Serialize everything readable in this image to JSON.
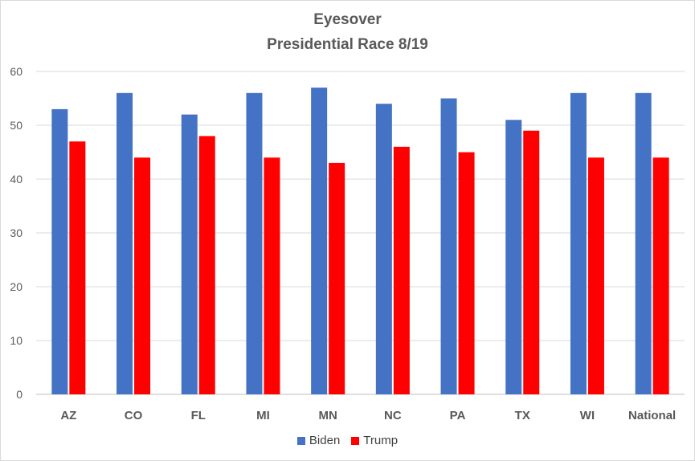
{
  "chart_data": {
    "type": "bar",
    "title": "Eyesover",
    "subtitle": "Presidential Race 8/19",
    "xlabel": "",
    "ylabel": "",
    "ylim": [
      0,
      60
    ],
    "yticks": [
      0,
      10,
      20,
      30,
      40,
      50,
      60
    ],
    "grid": true,
    "legend_position": "bottom",
    "categories": [
      "AZ",
      "CO",
      "FL",
      "MI",
      "MN",
      "NC",
      "PA",
      "TX",
      "WI",
      "National"
    ],
    "series": [
      {
        "name": "Biden",
        "color": "#4472c4",
        "values": [
          53,
          56,
          52,
          56,
          57,
          54,
          55,
          51,
          56,
          56
        ]
      },
      {
        "name": "Trump",
        "color": "#ff0000",
        "values": [
          47,
          44,
          48,
          44,
          43,
          46,
          45,
          49,
          44,
          44
        ]
      }
    ]
  }
}
